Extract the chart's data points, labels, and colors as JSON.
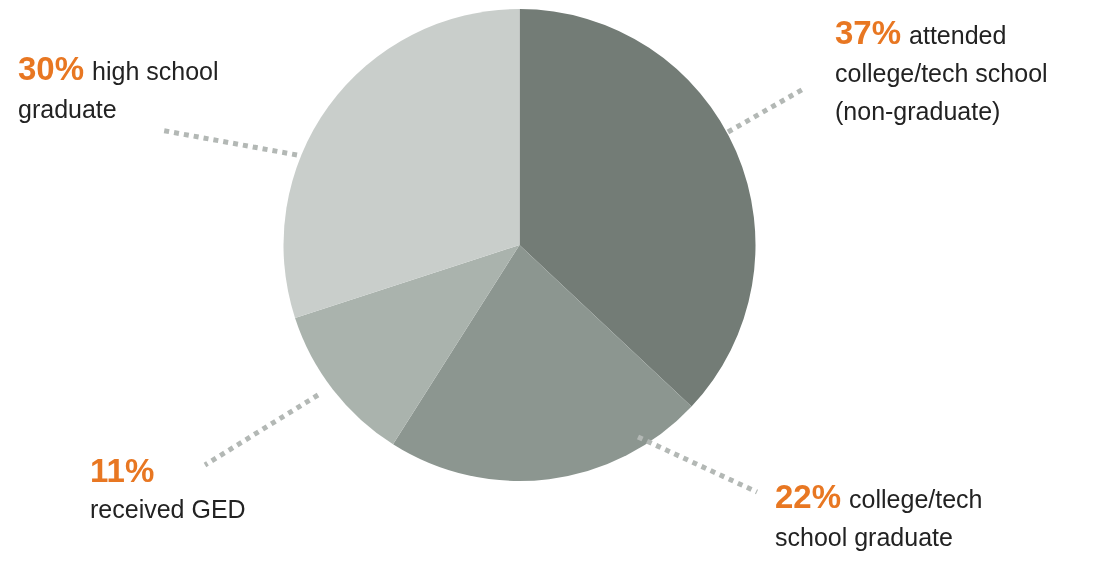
{
  "chart_data": {
    "type": "pie",
    "categories": [
      "attended college/tech school (non-graduate)",
      "college/tech school graduate",
      "received GED",
      "high school graduate"
    ],
    "values": [
      37,
      22,
      11,
      30
    ],
    "value_labels": [
      "37%",
      "22%",
      "11%",
      "30%"
    ],
    "colors": [
      "#737c76",
      "#8c9690",
      "#aab3ad",
      "#c9cecb"
    ],
    "legend": false
  }
}
